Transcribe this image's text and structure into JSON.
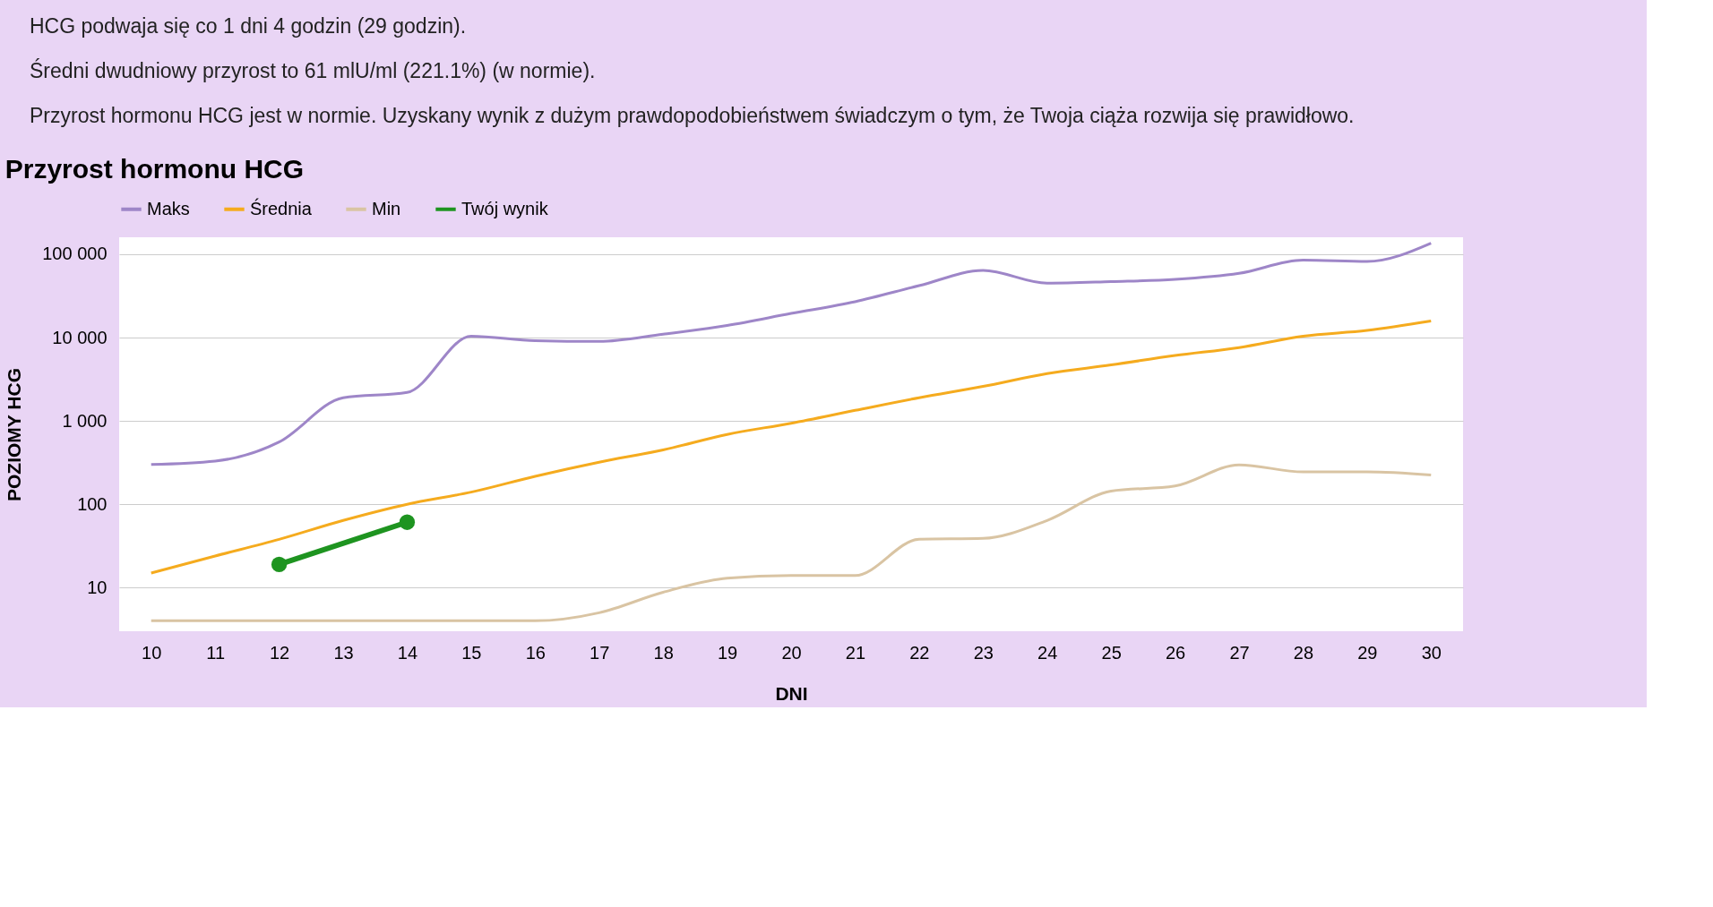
{
  "chart_data": {
    "type": "line",
    "title": "Przyrost hormonu HCG",
    "xlabel": "DNI",
    "ylabel": "POZIOMY HCG",
    "annotations": [
      "HCG podwaja się co 1 dni 4 godzin (29 godzin).",
      "Średni dwudniowy przyrost to 61 mlU/ml (221.1%) (w normie).",
      "Przyrost hormonu HCG jest w normie. Uzyskany wynik z dużym prawdopodobieństwem świadczym o tym, że Twoja ciąża rozwija się prawidłowo."
    ],
    "x": [
      10,
      11,
      12,
      13,
      14,
      15,
      16,
      17,
      18,
      19,
      20,
      21,
      22,
      23,
      24,
      25,
      26,
      27,
      28,
      29,
      30
    ],
    "series": [
      {
        "name": "Maks",
        "color": "#9e86c8",
        "values": [
          300,
          330,
          560,
          1900,
          2200,
          10400,
          9200,
          9000,
          11000,
          14000,
          19500,
          27000,
          42000,
          64000,
          45000,
          47000,
          50000,
          59000,
          85000,
          82000,
          136000
        ]
      },
      {
        "name": "Średnia",
        "color": "#f5ab1e",
        "values": [
          15,
          24,
          38,
          64,
          100,
          140,
          217,
          320,
          450,
          690,
          940,
          1340,
          1900,
          2600,
          3700,
          4700,
          6100,
          7600,
          10400,
          12200,
          15800
        ]
      },
      {
        "name": "Min",
        "color": "#d9c4a3",
        "values": [
          4,
          4,
          4,
          4,
          4,
          4,
          4,
          5,
          8.8,
          13,
          14,
          14,
          38,
          39,
          64,
          144,
          166,
          297,
          245,
          245,
          225
        ]
      },
      {
        "name": "Twój wynik",
        "color": "#1e9420",
        "marker": "circle",
        "x": [
          12,
          14
        ],
        "values": [
          19,
          61
        ]
      }
    ],
    "log": "y",
    "xlim": [
      9.5,
      30.5
    ],
    "xticks": [
      10,
      11,
      12,
      13,
      14,
      15,
      16,
      17,
      18,
      19,
      20,
      21,
      22,
      23,
      24,
      25,
      26,
      27,
      28,
      29,
      30
    ],
    "ylim": [
      3,
      160000
    ],
    "yticks": [
      10,
      100,
      {
        "value": 1000,
        "label": "1 000"
      },
      {
        "value": 10000,
        "label": "10 000"
      },
      {
        "value": 100000,
        "label": "100 000"
      }
    ],
    "grid": "y",
    "legend": "top left",
    "line_style": "solid"
  }
}
